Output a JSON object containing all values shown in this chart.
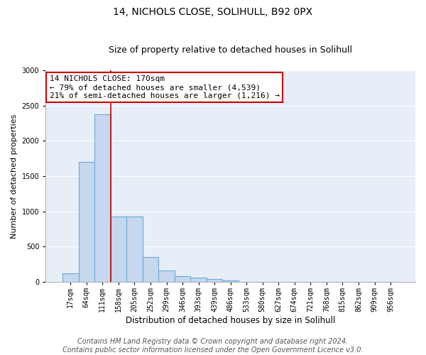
{
  "title_line1": "14, NICHOLS CLOSE, SOLIHULL, B92 0PX",
  "title_line2": "Size of property relative to detached houses in Solihull",
  "xlabel": "Distribution of detached houses by size in Solihull",
  "ylabel": "Number of detached properties",
  "bar_categories": [
    "17sqm",
    "64sqm",
    "111sqm",
    "158sqm",
    "205sqm",
    "252sqm",
    "299sqm",
    "346sqm",
    "393sqm",
    "439sqm",
    "486sqm",
    "533sqm",
    "580sqm",
    "627sqm",
    "674sqm",
    "721sqm",
    "768sqm",
    "815sqm",
    "862sqm",
    "909sqm",
    "956sqm"
  ],
  "bar_values": [
    120,
    1700,
    2380,
    920,
    920,
    350,
    155,
    80,
    55,
    35,
    20,
    0,
    0,
    0,
    0,
    0,
    0,
    0,
    0,
    0,
    0
  ],
  "bar_color": "#c5d8ef",
  "bar_edgecolor": "#6aaad4",
  "background_color": "#e8eef8",
  "grid_color": "#ffffff",
  "annotation_text": "14 NICHOLS CLOSE: 170sqm\n← 79% of detached houses are smaller (4,539)\n21% of semi-detached houses are larger (1,216) →",
  "annotation_box_color": "#ffffff",
  "annotation_box_edgecolor": "#cc0000",
  "red_line_x": 2.5,
  "ylim": [
    0,
    3000
  ],
  "yticks": [
    0,
    500,
    1000,
    1500,
    2000,
    2500,
    3000
  ],
  "footer_line1": "Contains HM Land Registry data © Crown copyright and database right 2024.",
  "footer_line2": "Contains public sector information licensed under the Open Government Licence v3.0.",
  "title_fontsize": 10,
  "subtitle_fontsize": 9,
  "ylabel_fontsize": 8,
  "xlabel_fontsize": 8.5,
  "tick_fontsize": 7,
  "annotation_fontsize": 8,
  "footer_fontsize": 7
}
